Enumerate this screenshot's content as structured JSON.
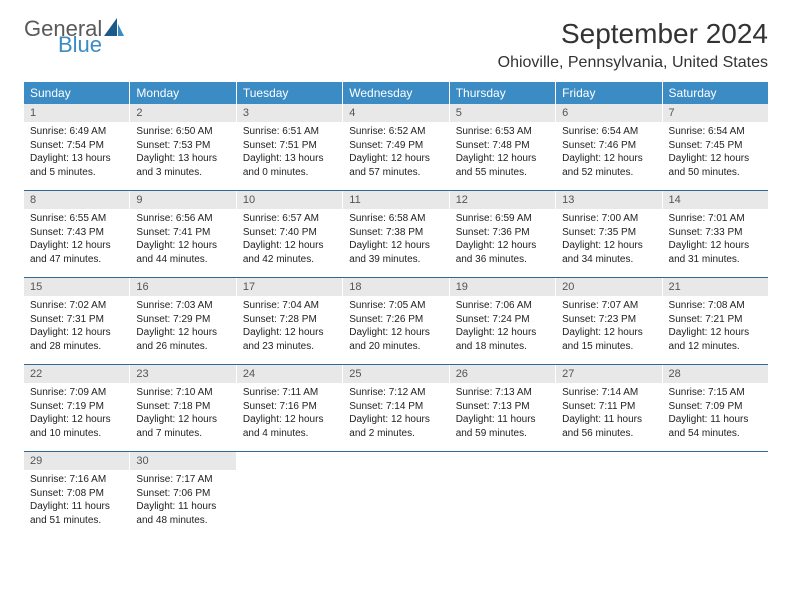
{
  "logo": {
    "general": "General",
    "blue": "Blue"
  },
  "title": "September 2024",
  "location": "Ohioville, Pennsylvania, United States",
  "colors": {
    "header_bg": "#3b8bc4",
    "header_text": "#ffffff",
    "daynum_bg": "#e8e8e8",
    "week_divider": "#2f6a94",
    "body_text": "#222222"
  },
  "weekdays": [
    "Sunday",
    "Monday",
    "Tuesday",
    "Wednesday",
    "Thursday",
    "Friday",
    "Saturday"
  ],
  "weeks": [
    [
      {
        "n": "1",
        "sunrise": "Sunrise: 6:49 AM",
        "sunset": "Sunset: 7:54 PM",
        "daylight": "Daylight: 13 hours and 5 minutes."
      },
      {
        "n": "2",
        "sunrise": "Sunrise: 6:50 AM",
        "sunset": "Sunset: 7:53 PM",
        "daylight": "Daylight: 13 hours and 3 minutes."
      },
      {
        "n": "3",
        "sunrise": "Sunrise: 6:51 AM",
        "sunset": "Sunset: 7:51 PM",
        "daylight": "Daylight: 13 hours and 0 minutes."
      },
      {
        "n": "4",
        "sunrise": "Sunrise: 6:52 AM",
        "sunset": "Sunset: 7:49 PM",
        "daylight": "Daylight: 12 hours and 57 minutes."
      },
      {
        "n": "5",
        "sunrise": "Sunrise: 6:53 AM",
        "sunset": "Sunset: 7:48 PM",
        "daylight": "Daylight: 12 hours and 55 minutes."
      },
      {
        "n": "6",
        "sunrise": "Sunrise: 6:54 AM",
        "sunset": "Sunset: 7:46 PM",
        "daylight": "Daylight: 12 hours and 52 minutes."
      },
      {
        "n": "7",
        "sunrise": "Sunrise: 6:54 AM",
        "sunset": "Sunset: 7:45 PM",
        "daylight": "Daylight: 12 hours and 50 minutes."
      }
    ],
    [
      {
        "n": "8",
        "sunrise": "Sunrise: 6:55 AM",
        "sunset": "Sunset: 7:43 PM",
        "daylight": "Daylight: 12 hours and 47 minutes."
      },
      {
        "n": "9",
        "sunrise": "Sunrise: 6:56 AM",
        "sunset": "Sunset: 7:41 PM",
        "daylight": "Daylight: 12 hours and 44 minutes."
      },
      {
        "n": "10",
        "sunrise": "Sunrise: 6:57 AM",
        "sunset": "Sunset: 7:40 PM",
        "daylight": "Daylight: 12 hours and 42 minutes."
      },
      {
        "n": "11",
        "sunrise": "Sunrise: 6:58 AM",
        "sunset": "Sunset: 7:38 PM",
        "daylight": "Daylight: 12 hours and 39 minutes."
      },
      {
        "n": "12",
        "sunrise": "Sunrise: 6:59 AM",
        "sunset": "Sunset: 7:36 PM",
        "daylight": "Daylight: 12 hours and 36 minutes."
      },
      {
        "n": "13",
        "sunrise": "Sunrise: 7:00 AM",
        "sunset": "Sunset: 7:35 PM",
        "daylight": "Daylight: 12 hours and 34 minutes."
      },
      {
        "n": "14",
        "sunrise": "Sunrise: 7:01 AM",
        "sunset": "Sunset: 7:33 PM",
        "daylight": "Daylight: 12 hours and 31 minutes."
      }
    ],
    [
      {
        "n": "15",
        "sunrise": "Sunrise: 7:02 AM",
        "sunset": "Sunset: 7:31 PM",
        "daylight": "Daylight: 12 hours and 28 minutes."
      },
      {
        "n": "16",
        "sunrise": "Sunrise: 7:03 AM",
        "sunset": "Sunset: 7:29 PM",
        "daylight": "Daylight: 12 hours and 26 minutes."
      },
      {
        "n": "17",
        "sunrise": "Sunrise: 7:04 AM",
        "sunset": "Sunset: 7:28 PM",
        "daylight": "Daylight: 12 hours and 23 minutes."
      },
      {
        "n": "18",
        "sunrise": "Sunrise: 7:05 AM",
        "sunset": "Sunset: 7:26 PM",
        "daylight": "Daylight: 12 hours and 20 minutes."
      },
      {
        "n": "19",
        "sunrise": "Sunrise: 7:06 AM",
        "sunset": "Sunset: 7:24 PM",
        "daylight": "Daylight: 12 hours and 18 minutes."
      },
      {
        "n": "20",
        "sunrise": "Sunrise: 7:07 AM",
        "sunset": "Sunset: 7:23 PM",
        "daylight": "Daylight: 12 hours and 15 minutes."
      },
      {
        "n": "21",
        "sunrise": "Sunrise: 7:08 AM",
        "sunset": "Sunset: 7:21 PM",
        "daylight": "Daylight: 12 hours and 12 minutes."
      }
    ],
    [
      {
        "n": "22",
        "sunrise": "Sunrise: 7:09 AM",
        "sunset": "Sunset: 7:19 PM",
        "daylight": "Daylight: 12 hours and 10 minutes."
      },
      {
        "n": "23",
        "sunrise": "Sunrise: 7:10 AM",
        "sunset": "Sunset: 7:18 PM",
        "daylight": "Daylight: 12 hours and 7 minutes."
      },
      {
        "n": "24",
        "sunrise": "Sunrise: 7:11 AM",
        "sunset": "Sunset: 7:16 PM",
        "daylight": "Daylight: 12 hours and 4 minutes."
      },
      {
        "n": "25",
        "sunrise": "Sunrise: 7:12 AM",
        "sunset": "Sunset: 7:14 PM",
        "daylight": "Daylight: 12 hours and 2 minutes."
      },
      {
        "n": "26",
        "sunrise": "Sunrise: 7:13 AM",
        "sunset": "Sunset: 7:13 PM",
        "daylight": "Daylight: 11 hours and 59 minutes."
      },
      {
        "n": "27",
        "sunrise": "Sunrise: 7:14 AM",
        "sunset": "Sunset: 7:11 PM",
        "daylight": "Daylight: 11 hours and 56 minutes."
      },
      {
        "n": "28",
        "sunrise": "Sunrise: 7:15 AM",
        "sunset": "Sunset: 7:09 PM",
        "daylight": "Daylight: 11 hours and 54 minutes."
      }
    ],
    [
      {
        "n": "29",
        "sunrise": "Sunrise: 7:16 AM",
        "sunset": "Sunset: 7:08 PM",
        "daylight": "Daylight: 11 hours and 51 minutes."
      },
      {
        "n": "30",
        "sunrise": "Sunrise: 7:17 AM",
        "sunset": "Sunset: 7:06 PM",
        "daylight": "Daylight: 11 hours and 48 minutes."
      },
      null,
      null,
      null,
      null,
      null
    ]
  ]
}
